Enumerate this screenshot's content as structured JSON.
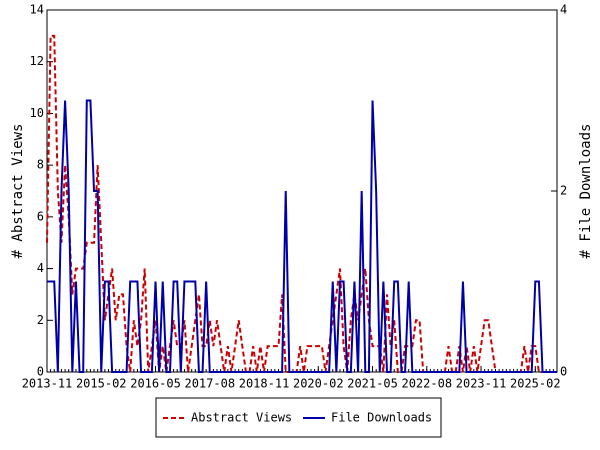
{
  "chart_data": {
    "type": "line",
    "y_label": "# Abstract Views",
    "y2_label": "# File Downloads",
    "x": [
      "2013-11",
      "2013-12",
      "2014-01",
      "2014-02",
      "2014-03",
      "2014-04",
      "2014-05",
      "2014-06",
      "2014-07",
      "2014-08",
      "2014-09",
      "2014-10",
      "2014-11",
      "2014-12",
      "2015-01",
      "2015-02",
      "2015-03",
      "2015-04",
      "2015-05",
      "2015-06",
      "2015-07",
      "2015-08",
      "2015-09",
      "2015-10",
      "2015-11",
      "2015-12",
      "2016-01",
      "2016-02",
      "2016-03",
      "2016-04",
      "2016-05",
      "2016-06",
      "2016-07",
      "2016-08",
      "2016-09",
      "2016-10",
      "2016-11",
      "2016-12",
      "2017-01",
      "2017-02",
      "2017-03",
      "2017-04",
      "2017-05",
      "2017-06",
      "2017-07",
      "2017-08",
      "2017-09",
      "2017-10",
      "2017-11",
      "2017-12",
      "2018-01",
      "2018-02",
      "2018-03",
      "2018-04",
      "2018-05",
      "2018-06",
      "2018-07",
      "2018-08",
      "2018-09",
      "2018-10",
      "2018-11",
      "2018-12",
      "2019-01",
      "2019-02",
      "2019-03",
      "2019-04",
      "2019-05",
      "2019-06",
      "2019-07",
      "2019-08",
      "2019-09",
      "2019-10",
      "2019-11",
      "2019-12",
      "2020-01",
      "2020-02",
      "2020-03",
      "2020-04",
      "2020-05",
      "2020-06",
      "2020-07",
      "2020-08",
      "2020-09",
      "2020-10",
      "2020-11",
      "2020-12",
      "2021-01",
      "2021-02",
      "2021-03",
      "2021-04",
      "2021-05",
      "2021-06",
      "2021-07",
      "2021-08",
      "2021-09",
      "2021-10",
      "2021-11",
      "2021-12",
      "2022-01",
      "2022-02",
      "2022-03",
      "2022-04",
      "2022-05",
      "2022-06",
      "2022-07",
      "2022-08",
      "2022-09",
      "2022-10",
      "2022-11",
      "2022-12",
      "2023-01",
      "2023-02",
      "2023-03",
      "2023-04",
      "2023-05",
      "2023-06",
      "2023-07",
      "2023-08",
      "2023-09",
      "2023-10",
      "2023-11",
      "2023-12",
      "2024-01",
      "2024-02",
      "2024-03",
      "2024-04",
      "2024-05",
      "2024-06",
      "2024-07",
      "2024-08",
      "2024-09",
      "2024-10",
      "2024-11",
      "2024-12",
      "2025-01",
      "2025-02",
      "2025-03",
      "2025-04",
      "2025-05",
      "2025-06",
      "2025-07",
      "2025-08"
    ],
    "xticks": [
      "2013-11",
      "2015-02",
      "2016-05",
      "2017-08",
      "2018-11",
      "2020-02",
      "2021-05",
      "2022-08",
      "2023-11",
      "2025-02"
    ],
    "ylim": [
      0,
      14
    ],
    "yticks": [
      0,
      2,
      4,
      6,
      8,
      10,
      12,
      14
    ],
    "y2lim": [
      0,
      4
    ],
    "y2ticks": [
      0,
      2,
      4
    ],
    "series": [
      {
        "name": "Abstract Views",
        "color": "#cc0000",
        "dashed": true,
        "values": [
          5,
          13,
          13,
          7,
          5,
          8,
          6,
          3,
          4,
          4,
          4,
          5,
          5,
          5,
          8,
          5,
          2,
          3,
          4,
          2,
          3,
          3,
          1,
          0,
          2,
          1,
          2,
          4,
          0,
          1,
          2,
          0,
          1,
          0,
          1,
          2,
          1,
          1,
          2,
          0,
          1,
          2,
          3,
          1,
          1,
          2,
          1,
          2,
          1,
          0,
          1,
          0,
          1,
          2,
          1,
          0,
          0,
          1,
          0,
          1,
          0,
          1,
          1,
          1,
          1,
          3,
          0,
          0,
          0,
          0,
          1,
          0,
          1,
          1,
          1,
          1,
          1,
          0,
          1,
          2,
          3,
          4,
          1,
          0,
          2,
          3,
          2,
          3,
          4,
          2,
          1,
          1,
          1,
          0,
          3,
          1,
          2,
          0,
          0,
          1,
          1,
          1,
          2,
          2,
          0,
          0,
          0,
          0,
          0,
          0,
          0,
          1,
          0,
          0,
          1,
          0,
          1,
          0,
          1,
          0,
          1,
          2,
          2,
          1,
          0,
          0,
          0,
          0,
          0,
          0,
          0,
          0,
          1,
          0,
          1,
          1,
          0,
          0,
          0,
          0,
          0,
          0
        ]
      },
      {
        "name": "File Downloads",
        "color": "#0000aa",
        "dashed": false,
        "axis": "y2",
        "values": [
          1,
          1,
          1,
          0,
          2,
          3,
          2,
          0,
          1,
          0,
          0,
          3,
          3,
          2,
          2,
          0,
          1,
          1,
          0,
          0,
          0,
          0,
          0,
          1,
          1,
          1,
          0,
          0,
          0,
          0,
          1,
          0,
          1,
          0,
          0,
          1,
          1,
          0,
          1,
          1,
          1,
          1,
          0,
          0,
          1,
          0,
          0,
          0,
          0,
          0,
          0,
          0,
          0,
          0,
          0,
          0,
          0,
          0,
          0,
          0,
          0,
          0,
          0,
          0,
          0,
          0,
          2,
          0,
          0,
          0,
          0,
          0,
          0,
          0,
          0,
          0,
          0,
          0,
          0,
          1,
          0,
          1,
          1,
          0,
          0,
          1,
          0,
          2,
          0,
          0,
          3,
          2,
          0,
          1,
          0,
          0,
          1,
          1,
          0,
          0,
          1,
          0,
          0,
          0,
          0,
          0,
          0,
          0,
          0,
          0,
          0,
          0,
          0,
          0,
          0,
          1,
          0,
          0,
          0,
          0,
          0,
          0,
          0,
          0,
          0,
          0,
          0,
          0,
          0,
          0,
          0,
          0,
          0,
          0,
          0,
          1,
          1,
          0,
          0,
          0,
          0,
          0
        ]
      }
    ]
  }
}
